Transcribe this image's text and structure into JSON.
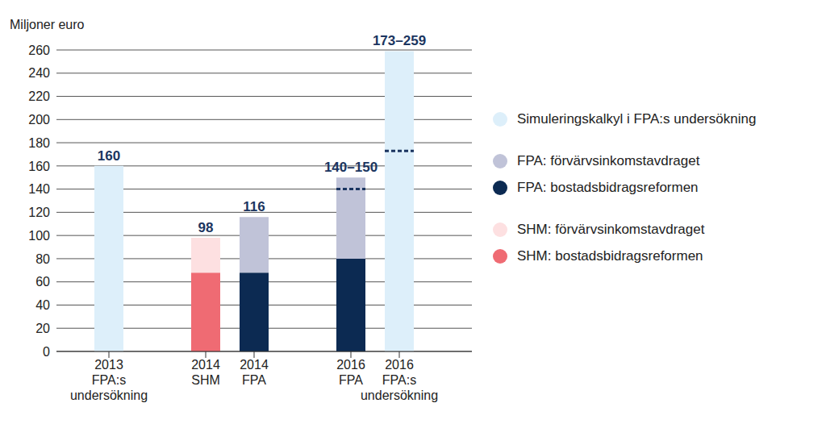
{
  "chart_data": {
    "type": "bar",
    "ylabel": "Miljoner euro",
    "categories": [
      "2013\nFPA:s\nundersökning",
      null,
      "2014\nSHM",
      "2014\nFPA",
      null,
      "2016\nFPA",
      "2016\nFPA:s\nundersökning"
    ],
    "series": [
      {
        "name": "Simuleringskalkyl i FPA:s undersökning",
        "color": "#ddeffa",
        "data_labels": false,
        "values": [
          160,
          null,
          null,
          null,
          null,
          null,
          259
        ]
      },
      {
        "name": "FPA: förvärvsinkomstavdraget",
        "color": "#c0c3d8",
        "data_labels": true,
        "values": [
          null,
          null,
          null,
          48,
          null,
          70,
          null
        ]
      },
      {
        "name": "FPA: bostadsbidragsreformen",
        "color": "#0c2a52",
        "data_labels": true,
        "values": [
          null,
          null,
          null,
          68,
          null,
          80,
          null
        ]
      },
      {
        "name": "SHM: förvärvsinkomstavdraget",
        "color": "#fde0e1",
        "data_labels": true,
        "values": [
          null,
          null,
          30,
          null,
          null,
          null,
          null
        ]
      },
      {
        "name": "SHM: bostadsbidragsreformen",
        "color": "#ef6b73",
        "data_labels": true,
        "values": [
          null,
          null,
          68,
          null,
          null,
          null,
          null
        ]
      }
    ],
    "totals": {
      "values": [
        160,
        null,
        98,
        116,
        null,
        150,
        259
      ],
      "value_labels": [
        "160",
        null,
        "98",
        "116",
        null,
        "140–150",
        "173–259"
      ],
      "range_low": [
        null,
        null,
        null,
        null,
        null,
        140,
        173
      ]
    },
    "ylim": [
      0,
      260
    ],
    "yticks": [
      0,
      20,
      40,
      60,
      80,
      100,
      120,
      140,
      160,
      180,
      200,
      220,
      240,
      260
    ],
    "stacked": true,
    "grid": true,
    "legend": "right"
  }
}
